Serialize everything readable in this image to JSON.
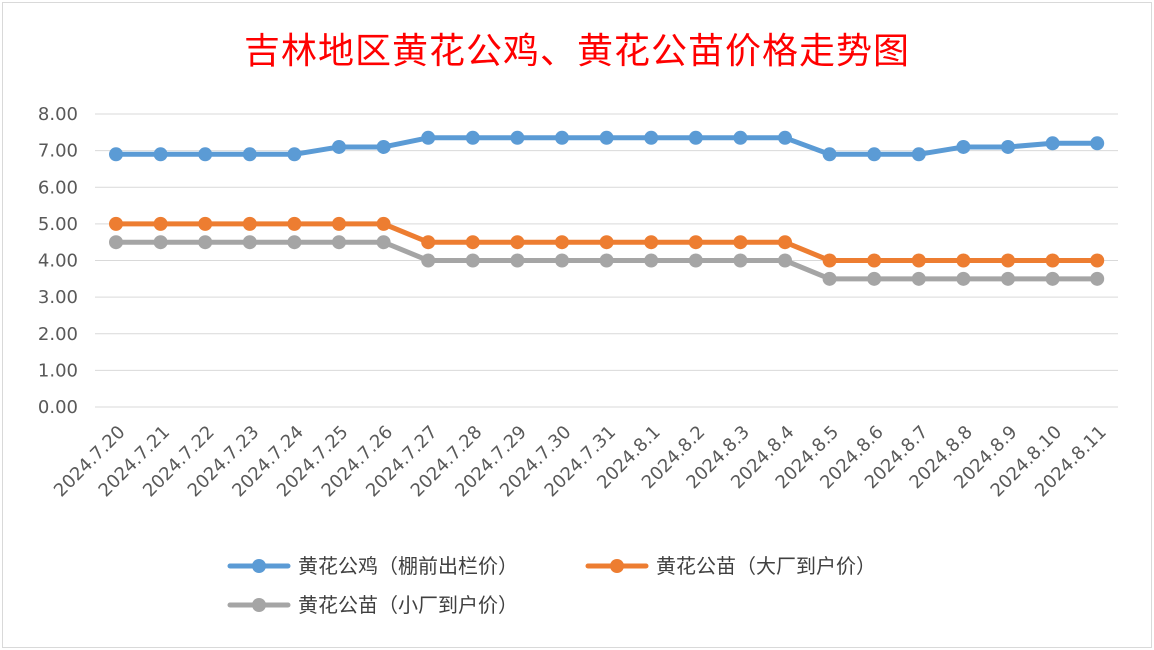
{
  "chart_data": {
    "type": "line",
    "title": "吉林地区黄花公鸡、黄花公苗价格走势图",
    "xlabel": "",
    "ylabel": "",
    "ylim": [
      0,
      8
    ],
    "yticks": [
      "0.00",
      "1.00",
      "2.00",
      "3.00",
      "4.00",
      "5.00",
      "6.00",
      "7.00",
      "8.00"
    ],
    "grid": true,
    "legend_position": "bottom",
    "categories": [
      "2024.7.20",
      "2024.7.21",
      "2024.7.22",
      "2024.7.23",
      "2024.7.24",
      "2024.7.25",
      "2024.7.26",
      "2024.7.27",
      "2024.7.28",
      "2024.7.29",
      "2024.7.30",
      "2024.7.31",
      "2024.8.1",
      "2024.8.2",
      "2024.8.3",
      "2024.8.4",
      "2024.8.5",
      "2024.8.6",
      "2024.8.7",
      "2024.8.8",
      "2024.8.9",
      "2024.8.10",
      "2024.8.11"
    ],
    "series": [
      {
        "name": "黄花公鸡（棚前出栏价）",
        "color": "#5b9bd5",
        "values": [
          6.9,
          6.9,
          6.9,
          6.9,
          6.9,
          7.1,
          7.1,
          7.35,
          7.35,
          7.35,
          7.35,
          7.35,
          7.35,
          7.35,
          7.35,
          7.35,
          6.9,
          6.9,
          6.9,
          7.1,
          7.1,
          7.2,
          7.2
        ]
      },
      {
        "name": "黄花公苗（大厂到户价）",
        "color": "#ed7d31",
        "values": [
          5.0,
          5.0,
          5.0,
          5.0,
          5.0,
          5.0,
          5.0,
          4.5,
          4.5,
          4.5,
          4.5,
          4.5,
          4.5,
          4.5,
          4.5,
          4.5,
          4.0,
          4.0,
          4.0,
          4.0,
          4.0,
          4.0,
          4.0
        ]
      },
      {
        "name": "黄花公苗（小厂到户价）",
        "color": "#a5a5a5",
        "values": [
          4.5,
          4.5,
          4.5,
          4.5,
          4.5,
          4.5,
          4.5,
          4.0,
          4.0,
          4.0,
          4.0,
          4.0,
          4.0,
          4.0,
          4.0,
          4.0,
          3.5,
          3.5,
          3.5,
          3.5,
          3.5,
          3.5,
          3.5
        ]
      }
    ]
  }
}
